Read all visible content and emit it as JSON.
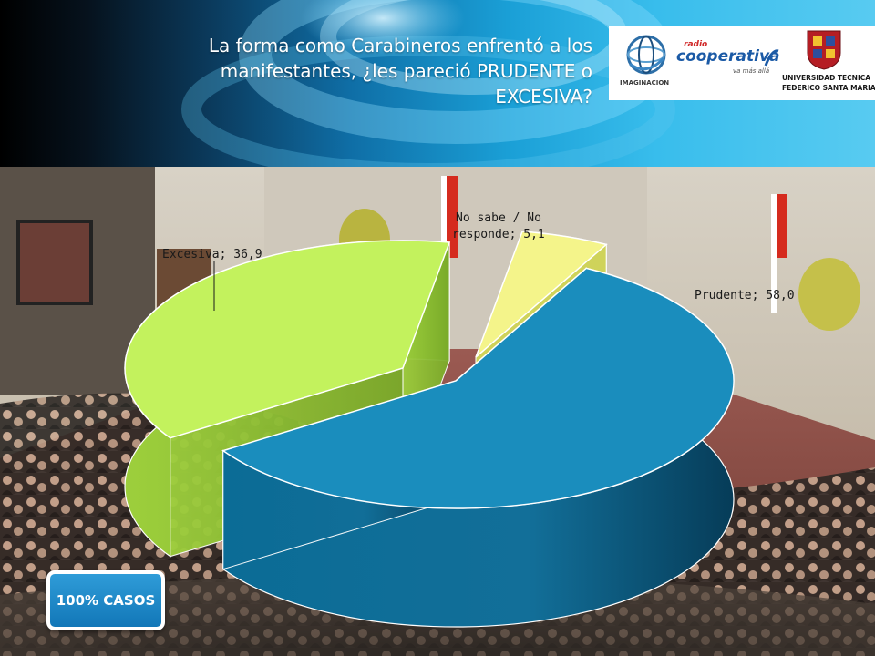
{
  "slide": {
    "title": "La forma como Carabineros enfrentó a los\nmanifestantes, ¿les pareció  PRUDENTE o\nEXCESIVA?",
    "badge": "100% CASOS"
  },
  "logos": {
    "imaginacion": "IMAGINACION",
    "cooperativa_radio": "radio",
    "cooperativa_name": "cooperativa",
    "cooperativa_tagline": "va más allá",
    "utfsm_line1": "UNIVERSIDAD TECNICA",
    "utfsm_line2": "FEDERICO SANTA MARIA"
  },
  "chart_data": {
    "type": "pie",
    "title": "",
    "style": "3d-exploded",
    "slices": [
      {
        "label": "Prudente; 58,0",
        "category": "Prudente",
        "value": 58.0,
        "color": "#1a8dbd"
      },
      {
        "label": "Excesiva; 36,9",
        "category": "Excesiva",
        "value": 36.9,
        "color": "#c3f25d"
      },
      {
        "label": "No sabe / No responde; 5,1",
        "category": "No sabe / No responde",
        "value": 5.1,
        "color": "#f4f48a"
      }
    ]
  }
}
